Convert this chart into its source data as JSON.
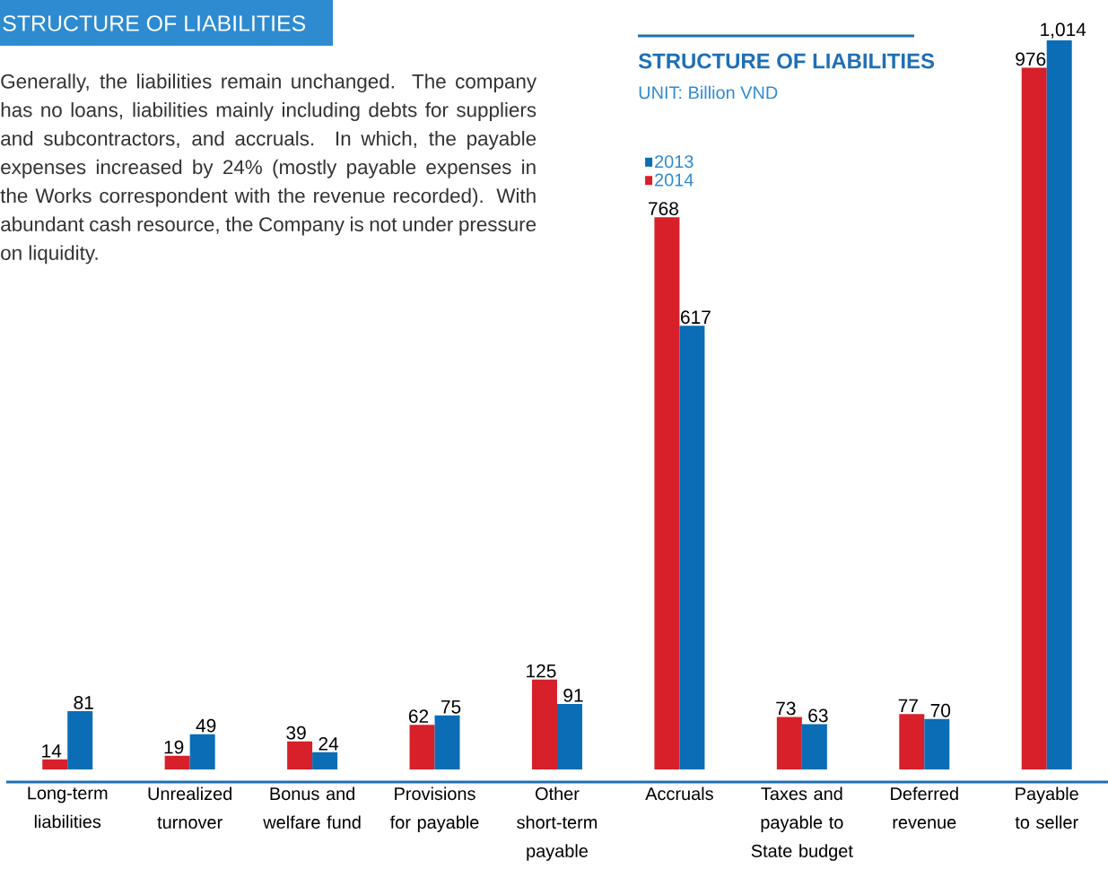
{
  "chart_data": {
    "type": "bar",
    "title": "STRUCTURE OF LIABILITIES",
    "subtitle": "UNIT: Billion VND",
    "annotations": [
      "STRUCTURE OF LIABILITIES",
      "Generally, the liabilities remain unchanged. The company has no loans, liabilities mainly including debts for suppliers and subcontractors, and accruals. In which, the payable expenses increased by 24% (mostly payable expenses in the Works correspondent with the revenue recorded). With abundant cash resource, the Company is not under pressure on liquidity."
    ],
    "categories": [
      "Long-term liabilities",
      "Unrealized turnover",
      "Bonus and welfare fund",
      "Provisions for payable",
      "Other short-term payable",
      "Accruals",
      "Taxes and payable to State budget",
      "Deferred revenue",
      "Payable to seller"
    ],
    "series": [
      {
        "name": "2014",
        "color": "#d7202a",
        "values": [
          14,
          19,
          39,
          62,
          125,
          768,
          73,
          77,
          976
        ],
        "value_labels": [
          "14",
          "19",
          "39",
          "62",
          "125",
          "768",
          "73",
          "77",
          "976"
        ]
      },
      {
        "name": "2013",
        "color": "#0a6db5",
        "values": [
          81,
          49,
          24,
          75,
          91,
          617,
          63,
          70,
          1014
        ],
        "value_labels": [
          "81",
          "49",
          "24",
          "75",
          "91",
          "617",
          "63",
          "70",
          "1,014"
        ]
      }
    ],
    "legend": "top"
  }
}
